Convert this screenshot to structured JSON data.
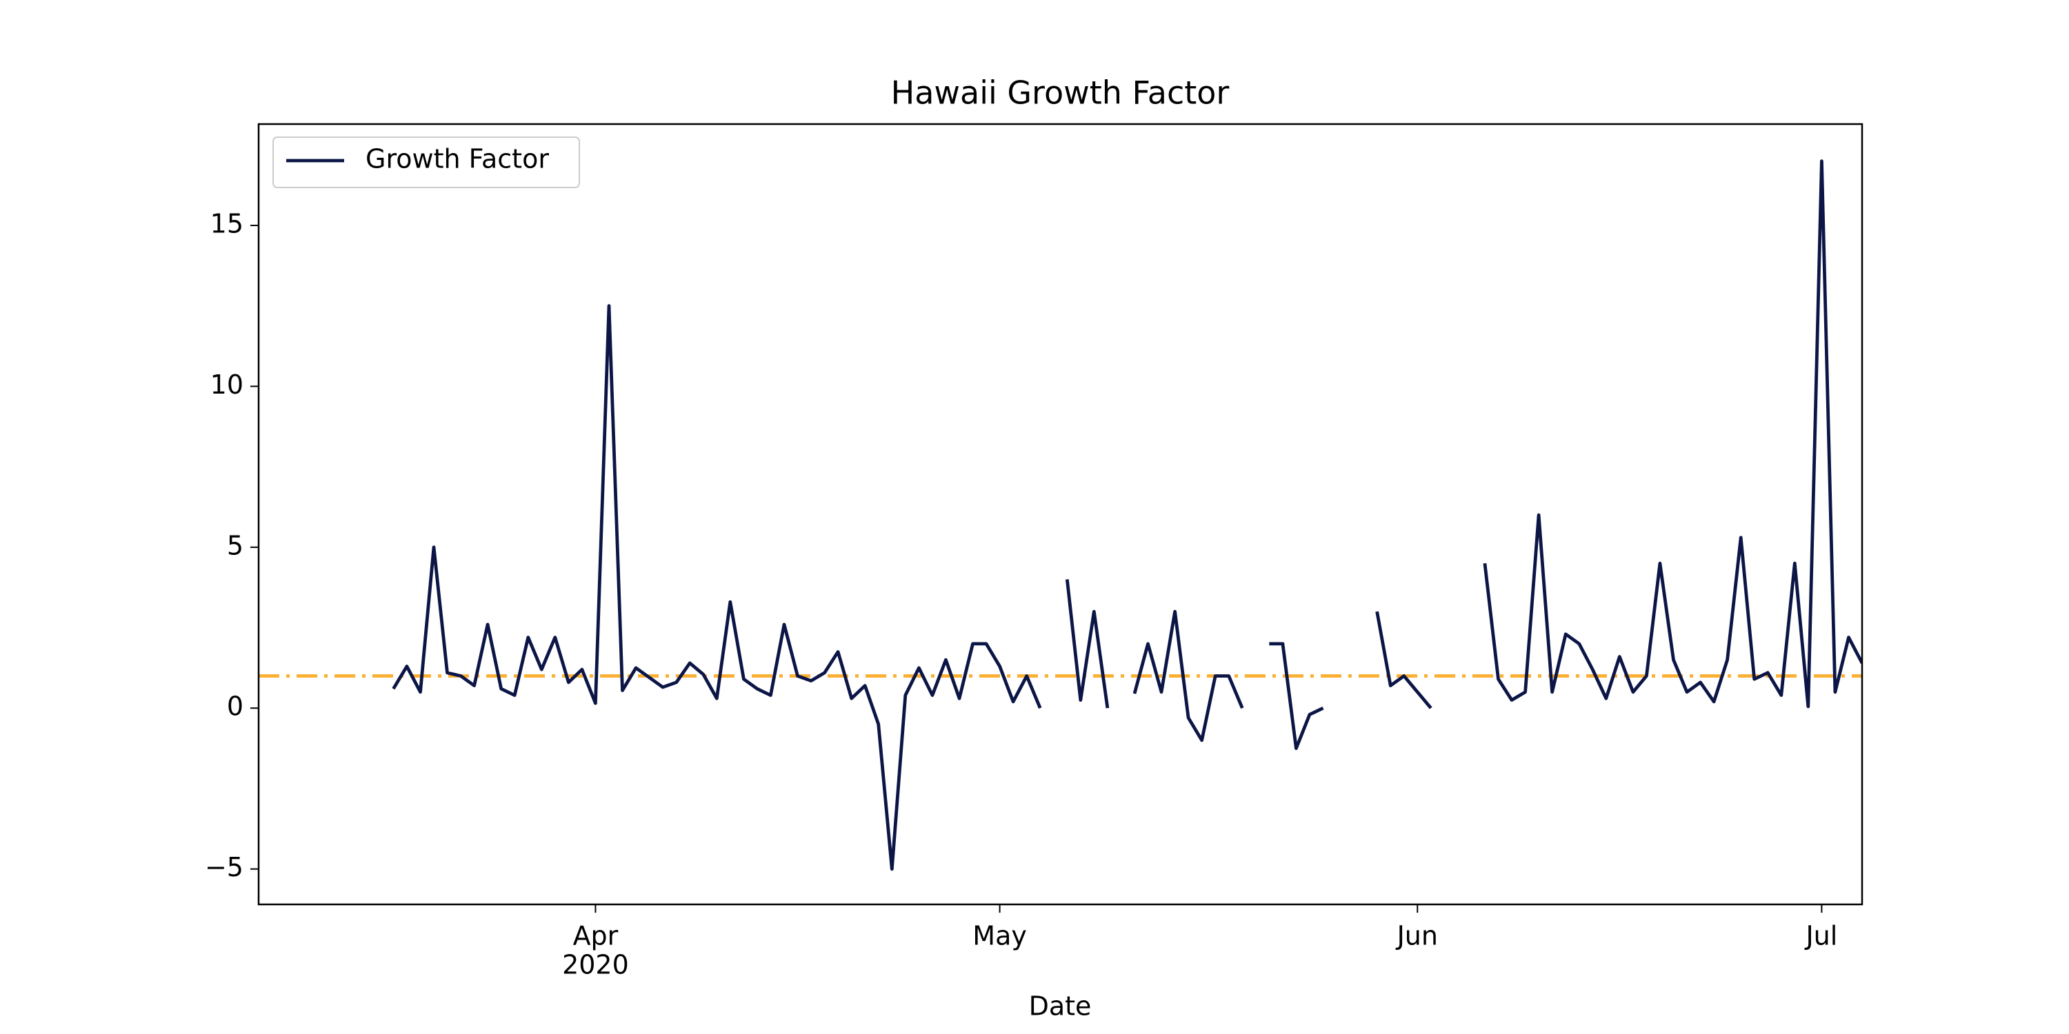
{
  "chart_data": {
    "type": "line",
    "title": "Hawaii Growth Factor",
    "xlabel": "Date",
    "x": [
      "2020-03-17",
      "2020-03-18",
      "2020-03-19",
      "2020-03-20",
      "2020-03-21",
      "2020-03-22",
      "2020-03-23",
      "2020-03-24",
      "2020-03-25",
      "2020-03-26",
      "2020-03-27",
      "2020-03-28",
      "2020-03-29",
      "2020-03-30",
      "2020-03-31",
      "2020-04-01",
      "2020-04-02",
      "2020-04-03",
      "2020-04-04",
      "2020-04-05",
      "2020-04-06",
      "2020-04-07",
      "2020-04-08",
      "2020-04-09",
      "2020-04-10",
      "2020-04-11",
      "2020-04-12",
      "2020-04-13",
      "2020-04-14",
      "2020-04-15",
      "2020-04-16",
      "2020-04-17",
      "2020-04-18",
      "2020-04-19",
      "2020-04-20",
      "2020-04-21",
      "2020-04-22",
      "2020-04-23",
      "2020-04-24",
      "2020-04-25",
      "2020-04-26",
      "2020-04-27",
      "2020-04-28",
      "2020-04-29",
      "2020-04-30",
      "2020-05-01",
      "2020-05-02",
      "2020-05-03",
      "2020-05-04",
      "2020-05-05",
      "2020-05-06",
      "2020-05-07",
      "2020-05-08",
      "2020-05-09",
      "2020-05-10",
      "2020-05-11",
      "2020-05-12",
      "2020-05-13",
      "2020-05-14",
      "2020-05-15",
      "2020-05-16",
      "2020-05-17",
      "2020-05-18",
      "2020-05-19",
      "2020-05-20",
      "2020-05-21",
      "2020-05-22",
      "2020-05-23",
      "2020-05-24",
      "2020-05-25",
      "2020-05-26",
      "2020-05-27",
      "2020-05-28",
      "2020-05-29",
      "2020-05-30",
      "2020-05-31",
      "2020-06-01",
      "2020-06-02",
      "2020-06-03",
      "2020-06-04",
      "2020-06-05",
      "2020-06-06",
      "2020-06-07",
      "2020-06-08",
      "2020-06-09",
      "2020-06-10",
      "2020-06-11",
      "2020-06-12",
      "2020-06-13",
      "2020-06-14",
      "2020-06-15",
      "2020-06-16",
      "2020-06-17",
      "2020-06-18",
      "2020-06-19",
      "2020-06-20",
      "2020-06-21",
      "2020-06-22",
      "2020-06-23",
      "2020-06-24",
      "2020-06-25",
      "2020-06-26",
      "2020-06-27",
      "2020-06-28",
      "2020-06-29",
      "2020-06-30",
      "2020-07-01",
      "2020-07-02",
      "2020-07-03",
      "2020-07-04"
    ],
    "series": [
      {
        "name": "Growth Factor",
        "color": "#0c1646",
        "values": [
          0.6,
          1.3,
          0.5,
          5.0,
          1.1,
          1.0,
          0.7,
          2.6,
          0.6,
          0.4,
          2.2,
          1.2,
          2.2,
          0.8,
          1.2,
          0.15,
          12.5,
          0.55,
          1.25,
          0.95,
          0.65,
          0.8,
          1.4,
          1.05,
          0.3,
          3.3,
          0.9,
          0.6,
          0.4,
          2.6,
          1.0,
          0.85,
          1.1,
          1.75,
          0.3,
          0.7,
          -0.5,
          -5.0,
          0.4,
          1.25,
          0.4,
          1.5,
          0.3,
          2.0,
          2.0,
          1.3,
          0.2,
          1.0,
          0.0,
          null,
          4.0,
          0.25,
          3.0,
          0.0,
          null,
          0.45,
          2.0,
          0.5,
          3.0,
          -0.3,
          -1.0,
          1.0,
          1.0,
          0.0,
          null,
          2.0,
          2.0,
          -1.25,
          -0.2,
          0.0,
          null,
          null,
          null,
          3.0,
          0.7,
          1.0,
          0.5,
          0.0,
          null,
          null,
          null,
          4.5,
          0.9,
          0.25,
          0.5,
          6.0,
          0.5,
          2.3,
          2.0,
          1.2,
          0.3,
          1.6,
          0.5,
          1.0,
          4.5,
          1.5,
          0.5,
          0.8,
          0.2,
          1.5,
          5.3,
          0.9,
          1.1,
          0.4,
          4.5,
          0.05,
          17.0,
          0.5,
          2.2,
          1.4
        ]
      }
    ],
    "reference_line": {
      "value": 1,
      "color": "#fbb034"
    },
    "xlim": [
      "2020-03-07",
      "2020-07-04"
    ],
    "xticks": [
      {
        "value": "2020-04-01",
        "label": [
          "Apr",
          "2020"
        ]
      },
      {
        "value": "2020-05-01",
        "label": [
          "May"
        ]
      },
      {
        "value": "2020-06-01",
        "label": [
          "Jun"
        ]
      },
      {
        "value": "2020-07-01",
        "label": [
          "Jul"
        ]
      }
    ],
    "ylim": [
      -6.1,
      18.15
    ],
    "yticks": [
      {
        "value": -5,
        "label": "−5"
      },
      0,
      5,
      10,
      15
    ],
    "legend": "upper left"
  }
}
